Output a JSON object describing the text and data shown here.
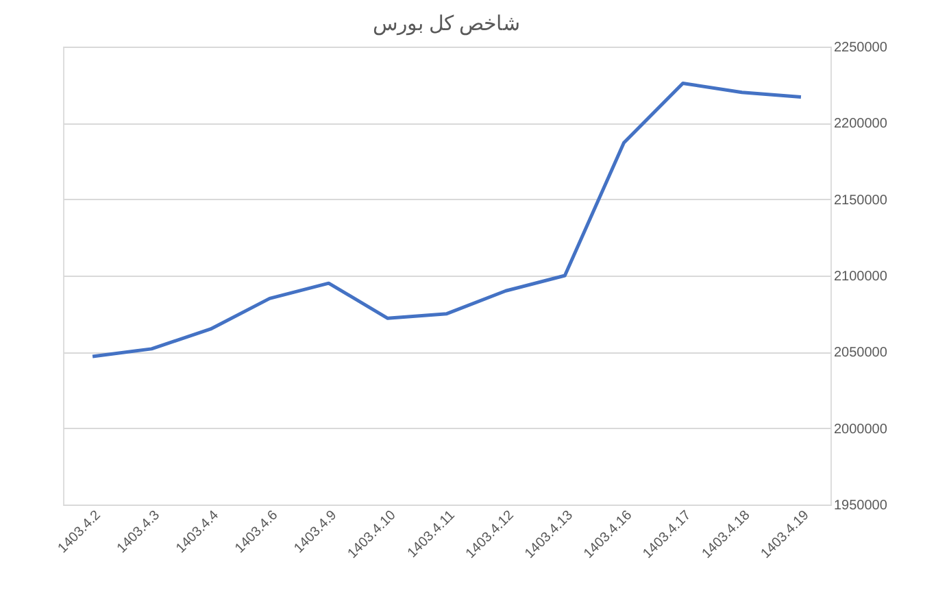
{
  "chart_data": {
    "type": "line",
    "title": "شاخص کل بورس",
    "categories": [
      "1403.4.2",
      "1403.4.3",
      "1403.4.4",
      "1403.4.6",
      "1403.4.9",
      "1403.4.10",
      "1403.4.11",
      "1403.4.12",
      "1403.4.13",
      "1403.4.16",
      "1403.4.17",
      "1403.4.18",
      "1403.4.19"
    ],
    "series": [
      {
        "color": "#4472c4",
        "values": [
          2047000,
          2052000,
          2065000,
          2085000,
          2095000,
          2072000,
          2075000,
          2090000,
          2100000,
          2187000,
          2226000,
          2220000,
          2217000
        ]
      }
    ],
    "ylim": [
      1950000,
      2250000
    ],
    "yticks": [
      1950000,
      2000000,
      2050000,
      2100000,
      2150000,
      2200000,
      2250000
    ],
    "grid": "y",
    "marker": "none",
    "line_style": "solid"
  }
}
